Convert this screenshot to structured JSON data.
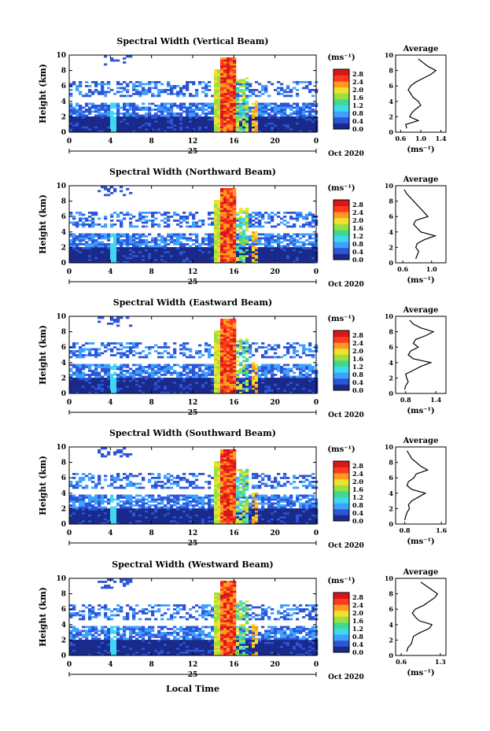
{
  "figure": {
    "xlabel": "Local Time",
    "date_day": "25",
    "date_suffix": "Oct 2020"
  },
  "colorbar": {
    "unit": "(ms⁻¹)",
    "ticks": [
      "2.8",
      "2.4",
      "2.0",
      "1.6",
      "1.2",
      "0.8",
      "0.4",
      "0.0"
    ],
    "colors": [
      "#1a2a8a",
      "#2d55d6",
      "#3ea0ff",
      "#3ed8f0",
      "#40d890",
      "#9ae040",
      "#f0e030",
      "#ff9a20",
      "#ff3a20",
      "#d81818"
    ]
  },
  "chart_data": [
    {
      "type": "heatmap",
      "title": "Spectral Width (Vertical Beam)",
      "ylabel": "Height (km)",
      "xlabel": "Local Time",
      "xlim": [
        0,
        24
      ],
      "ylim": [
        0,
        10
      ],
      "xticks": [
        "0",
        "4",
        "8",
        "12",
        "16",
        "20",
        "0"
      ],
      "yticks": [
        "0",
        "2",
        "4",
        "6",
        "8",
        "10"
      ],
      "colorbar_label": "(ms⁻¹)",
      "colorbar_ticks": [
        "2.8",
        "2.4",
        "2.0",
        "1.6",
        "1.2",
        "0.8",
        "0.4",
        "0.0"
      ],
      "avg_title": "Average",
      "avg_xlabel": "(ms⁻¹)",
      "avg_xticks": [
        "0.6",
        "1.0",
        "1.4"
      ],
      "avg_xlim": [
        0.5,
        1.5
      ],
      "avg_profile": {
        "height": [
          0.5,
          1.0,
          1.5,
          2.0,
          2.5,
          3.0,
          3.5,
          4.0,
          4.5,
          5.0,
          5.5,
          6.0,
          6.5,
          7.0,
          7.5,
          8.0,
          8.5,
          9.0,
          9.5
        ],
        "width": [
          0.72,
          0.7,
          0.95,
          0.78,
          0.82,
          0.9,
          1.0,
          0.95,
          0.85,
          0.8,
          0.75,
          0.8,
          0.9,
          1.05,
          1.2,
          1.3,
          1.15,
          1.05,
          0.95
        ]
      }
    },
    {
      "type": "heatmap",
      "title": "Spectral Width (Northward Beam)",
      "ylabel": "Height (km)",
      "xlabel": "Local Time",
      "xlim": [
        0,
        24
      ],
      "ylim": [
        0,
        10
      ],
      "xticks": [
        "0",
        "4",
        "8",
        "12",
        "16",
        "20",
        "0"
      ],
      "yticks": [
        "0",
        "2",
        "4",
        "6",
        "8",
        "10"
      ],
      "colorbar_label": "(ms⁻¹)",
      "colorbar_ticks": [
        "2.8",
        "2.4",
        "2.0",
        "1.6",
        "1.2",
        "0.8",
        "0.4",
        "0.0"
      ],
      "avg_title": "Average",
      "avg_xlabel": "(ms⁻¹)",
      "avg_xticks": [
        "0.6",
        "1.0"
      ],
      "avg_xlim": [
        0.5,
        1.2
      ],
      "avg_profile": {
        "height": [
          0.5,
          1.0,
          1.5,
          2.0,
          2.5,
          3.0,
          3.5,
          4.0,
          4.5,
          5.0,
          5.5,
          6.0,
          6.5,
          7.0,
          7.5,
          8.0,
          8.5,
          9.0,
          9.5
        ],
        "width": [
          0.78,
          0.8,
          0.82,
          0.78,
          0.8,
          0.9,
          1.05,
          0.85,
          0.8,
          0.75,
          0.78,
          0.95,
          0.9,
          0.85,
          0.8,
          0.75,
          0.7,
          0.65,
          0.62
        ]
      }
    },
    {
      "type": "heatmap",
      "title": "Spectral Width (Eastward Beam)",
      "ylabel": "Height (km)",
      "xlabel": "Local Time",
      "xlim": [
        0,
        24
      ],
      "ylim": [
        0,
        10
      ],
      "xticks": [
        "0",
        "4",
        "8",
        "12",
        "16",
        "20",
        "0"
      ],
      "yticks": [
        "0",
        "2",
        "4",
        "6",
        "8",
        "10"
      ],
      "colorbar_label": "(ms⁻¹)",
      "colorbar_ticks": [
        "2.8",
        "2.4",
        "2.0",
        "1.6",
        "1.2",
        "0.8",
        "0.4",
        "0.0"
      ],
      "avg_title": "Average",
      "avg_xlabel": "(ms⁻¹)",
      "avg_xticks": [
        "0.8",
        "1.4"
      ],
      "avg_xlim": [
        0.6,
        1.6
      ],
      "avg_profile": {
        "height": [
          0.5,
          1.0,
          1.5,
          2.0,
          2.5,
          3.0,
          3.5,
          4.0,
          4.5,
          5.0,
          5.5,
          6.0,
          6.5,
          7.0,
          7.5,
          8.0,
          8.5,
          9.0,
          9.5
        ],
        "width": [
          0.78,
          0.8,
          0.85,
          0.82,
          0.8,
          0.95,
          1.1,
          1.3,
          0.95,
          0.85,
          0.9,
          1.05,
          0.95,
          1.0,
          1.2,
          1.35,
          1.1,
          0.95,
          0.88
        ]
      }
    },
    {
      "type": "heatmap",
      "title": "Spectral Width (Southward Beam)",
      "ylabel": "Height (km)",
      "xlabel": "Local Time",
      "xlim": [
        0,
        24
      ],
      "ylim": [
        0,
        10
      ],
      "xticks": [
        "0",
        "4",
        "8",
        "12",
        "16",
        "20",
        "0"
      ],
      "yticks": [
        "0",
        "2",
        "4",
        "6",
        "8",
        "10"
      ],
      "colorbar_label": "(ms⁻¹)",
      "colorbar_ticks": [
        "2.8",
        "2.4",
        "2.0",
        "1.6",
        "1.2",
        "0.8",
        "0.4",
        "0.0"
      ],
      "avg_title": "Average",
      "avg_xlabel": "(ms⁻¹)",
      "avg_xticks": [
        "0.8",
        "1.6"
      ],
      "avg_xlim": [
        0.6,
        1.7
      ],
      "avg_profile": {
        "height": [
          0.5,
          1.0,
          1.5,
          2.0,
          2.5,
          3.0,
          3.5,
          4.0,
          4.5,
          5.0,
          5.5,
          6.0,
          6.5,
          7.0,
          7.5,
          8.0,
          8.5,
          9.0,
          9.5
        ],
        "width": [
          0.8,
          0.82,
          0.85,
          0.9,
          0.88,
          0.95,
          1.1,
          1.25,
          0.95,
          0.85,
          0.88,
          1.0,
          1.05,
          1.3,
          1.15,
          1.05,
          0.95,
          0.9,
          0.85
        ]
      }
    },
    {
      "type": "heatmap",
      "title": "Spectral Width (Westward Beam)",
      "ylabel": "Height (km)",
      "xlabel": "Local Time",
      "xlim": [
        0,
        24
      ],
      "ylim": [
        0,
        10
      ],
      "xticks": [
        "0",
        "4",
        "8",
        "12",
        "16",
        "20",
        "0"
      ],
      "yticks": [
        "0",
        "2",
        "4",
        "6",
        "8",
        "10"
      ],
      "colorbar_label": "(ms⁻¹)",
      "colorbar_ticks": [
        "2.8",
        "2.4",
        "2.0",
        "1.6",
        "1.2",
        "0.8",
        "0.4",
        "0.0"
      ],
      "avg_title": "Average",
      "avg_xlabel": "(ms⁻¹)",
      "avg_xticks": [
        "0.6",
        "1.3"
      ],
      "avg_xlim": [
        0.5,
        1.4
      ],
      "avg_profile": {
        "height": [
          0.5,
          1.0,
          1.5,
          2.0,
          2.5,
          3.0,
          3.5,
          4.0,
          4.5,
          5.0,
          5.5,
          6.0,
          6.5,
          7.0,
          7.5,
          8.0,
          8.5,
          9.0,
          9.5
        ],
        "width": [
          0.7,
          0.72,
          0.78,
          0.8,
          0.82,
          0.95,
          1.1,
          1.15,
          0.92,
          0.85,
          0.8,
          0.85,
          1.0,
          1.1,
          1.2,
          1.25,
          1.15,
          1.05,
          0.95
        ]
      }
    }
  ]
}
